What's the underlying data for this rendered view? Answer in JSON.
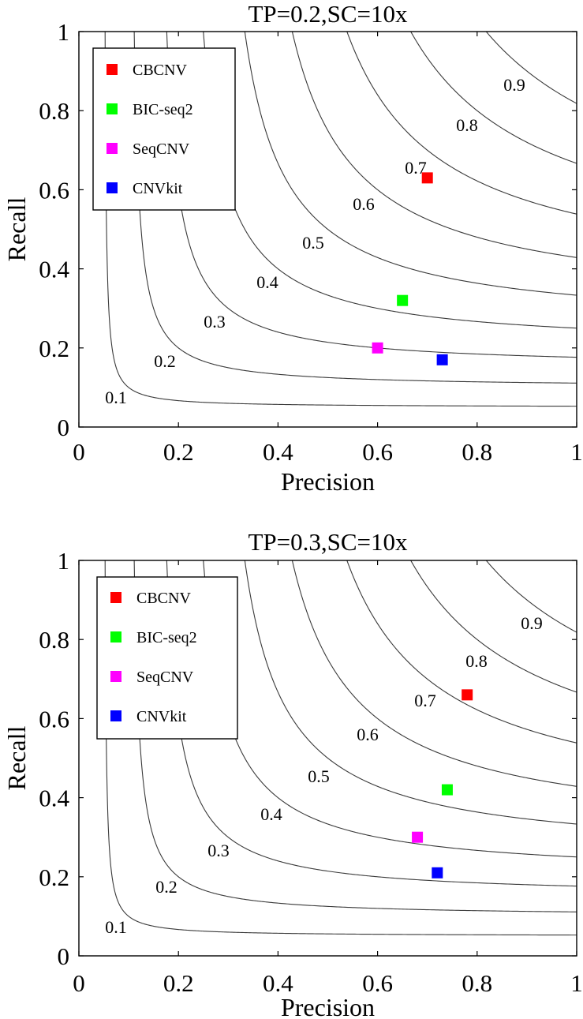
{
  "chart_data": [
    {
      "type": "scatter",
      "title": "TP=0.2,SC=10x",
      "xlabel": "Precision",
      "ylabel": "Recall",
      "xlim": [
        0,
        1
      ],
      "ylim": [
        0,
        1
      ],
      "xticks": [
        "0",
        "0.2",
        "0.4",
        "0.6",
        "0.8",
        "1"
      ],
      "yticks": [
        "0",
        "0.2",
        "0.4",
        "0.6",
        "0.8",
        "1"
      ],
      "legend_position": "top-left",
      "iso_f1_curves": [
        {
          "f": 0.1,
          "label": "0.1"
        },
        {
          "f": 0.2,
          "label": "0.2"
        },
        {
          "f": 0.3,
          "label": "0.3"
        },
        {
          "f": 0.4,
          "label": "0.4"
        },
        {
          "f": 0.5,
          "label": "0.5"
        },
        {
          "f": 0.6,
          "label": "0.6"
        },
        {
          "f": 0.7,
          "label": "0.7"
        },
        {
          "f": 0.8,
          "label": "0.8"
        },
        {
          "f": 0.9,
          "label": "0.9"
        }
      ],
      "series": [
        {
          "name": "CBCNV",
          "color": "#ff0000",
          "x": 0.7,
          "y": 0.63
        },
        {
          "name": "BIC-seq2",
          "color": "#00ff00",
          "x": 0.65,
          "y": 0.32
        },
        {
          "name": "SeqCNV",
          "color": "#ff00ff",
          "x": 0.6,
          "y": 0.2
        },
        {
          "name": "CNVkit",
          "color": "#0000ff",
          "x": 0.73,
          "y": 0.17
        }
      ]
    },
    {
      "type": "scatter",
      "title": "TP=0.3,SC=10x",
      "xlabel": "Precision",
      "ylabel": "Recall",
      "xlim": [
        0,
        1
      ],
      "ylim": [
        0,
        1
      ],
      "xticks": [
        "0",
        "0.2",
        "0.4",
        "0.6",
        "0.8",
        "1"
      ],
      "yticks": [
        "0",
        "0.2",
        "0.4",
        "0.6",
        "0.8",
        "1"
      ],
      "legend_position": "top-left",
      "iso_f1_curves": [
        {
          "f": 0.1,
          "label": "0.1"
        },
        {
          "f": 0.2,
          "label": "0.2"
        },
        {
          "f": 0.3,
          "label": "0.3"
        },
        {
          "f": 0.4,
          "label": "0.4"
        },
        {
          "f": 0.5,
          "label": "0.5"
        },
        {
          "f": 0.6,
          "label": "0.6"
        },
        {
          "f": 0.7,
          "label": "0.7"
        },
        {
          "f": 0.8,
          "label": "0.8"
        },
        {
          "f": 0.9,
          "label": "0.9"
        }
      ],
      "series": [
        {
          "name": "CBCNV",
          "color": "#ff0000",
          "x": 0.78,
          "y": 0.66
        },
        {
          "name": "BIC-seq2",
          "color": "#00ff00",
          "x": 0.74,
          "y": 0.42
        },
        {
          "name": "SeqCNV",
          "color": "#ff00ff",
          "x": 0.68,
          "y": 0.3
        },
        {
          "name": "CNVkit",
          "color": "#0000ff",
          "x": 0.72,
          "y": 0.21
        }
      ]
    }
  ]
}
